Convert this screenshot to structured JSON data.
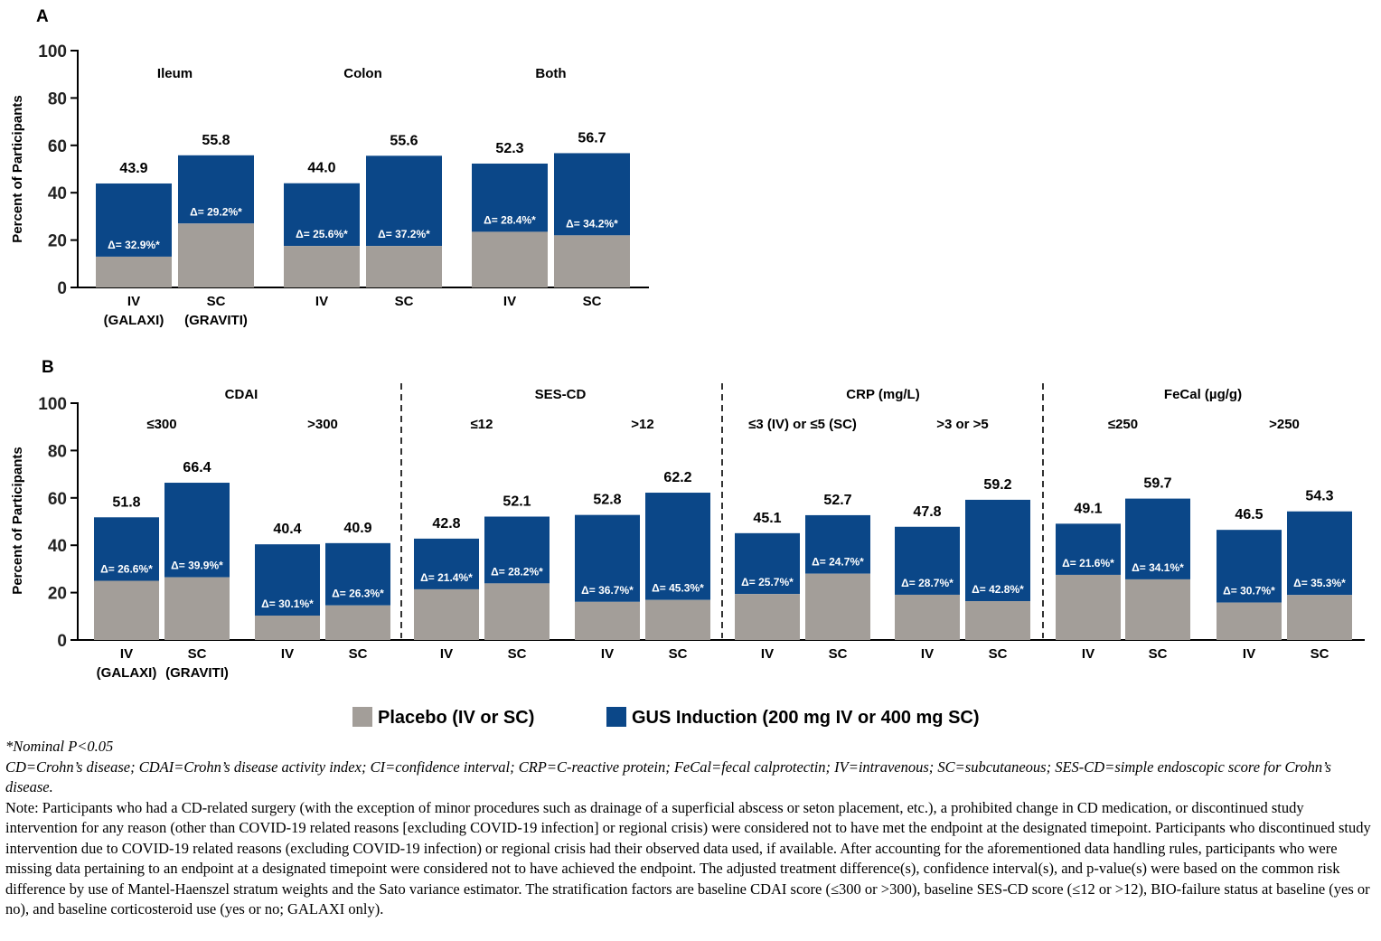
{
  "colors": {
    "placebo": "#a39e99",
    "gus": "#0b4788",
    "axis": "#000000"
  },
  "panels": {
    "a": {
      "label": "A",
      "ylabel": "Percent of Participants",
      "yticks": [
        "0",
        "20",
        "40",
        "60",
        "80",
        "100"
      ]
    },
    "b": {
      "label": "B",
      "ylabel": "Percent of Participants",
      "yticks": [
        "0",
        "20",
        "40",
        "60",
        "80",
        "100"
      ]
    }
  },
  "legend": {
    "placebo": "Placebo (IV or SC)",
    "gus": "GUS Induction (200 mg IV or 400 mg SC)"
  },
  "chart_data": [
    {
      "type": "bar",
      "stacked": true,
      "panel": "A",
      "ylabel": "Percent of Participants",
      "ylim": [
        0,
        100
      ],
      "groups": [
        {
          "label": "Ileum",
          "bars": [
            {
              "x": "IV",
              "sub": "(GALAXI)",
              "placebo": 13.0,
              "total": 43.9,
              "total_label": "43.9",
              "delta_label": "Δ= 32.9%*"
            },
            {
              "x": "SC",
              "sub": "(GRAVITI)",
              "placebo": 27.0,
              "total": 55.8,
              "total_label": "55.8",
              "delta_label": "Δ= 29.2%*"
            }
          ]
        },
        {
          "label": "Colon",
          "bars": [
            {
              "x": "IV",
              "sub": "",
              "placebo": 17.5,
              "total": 44.0,
              "total_label": "44.0",
              "delta_label": "Δ= 25.6%*"
            },
            {
              "x": "SC",
              "sub": "",
              "placebo": 17.5,
              "total": 55.6,
              "total_label": "55.6",
              "delta_label": "Δ= 37.2%*"
            }
          ]
        },
        {
          "label": "Both",
          "bars": [
            {
              "x": "IV",
              "sub": "",
              "placebo": 23.5,
              "total": 52.3,
              "total_label": "52.3",
              "delta_label": "Δ= 28.4%*"
            },
            {
              "x": "SC",
              "sub": "",
              "placebo": 22.0,
              "total": 56.7,
              "total_label": "56.7",
              "delta_label": "Δ= 34.2%*"
            }
          ]
        }
      ]
    },
    {
      "type": "bar",
      "stacked": true,
      "panel": "B",
      "ylabel": "Percent of Participants",
      "ylim": [
        0,
        100
      ],
      "categories": [
        "CDAI",
        "SES-CD",
        "CRP (mg/L)",
        "FeCal (µg/g)"
      ],
      "groups": [
        {
          "category": "CDAI",
          "label": "≤300",
          "bars": [
            {
              "x": "IV",
              "sub": "(GALAXI)",
              "placebo": 25.0,
              "total": 51.8,
              "total_label": "51.8",
              "delta_label": "Δ= 26.6%*"
            },
            {
              "x": "SC",
              "sub": "(GRAVITI)",
              "placebo": 26.5,
              "total": 66.4,
              "total_label": "66.4",
              "delta_label": "Δ= 39.9%*"
            }
          ]
        },
        {
          "category": "CDAI",
          "label": ">300",
          "bars": [
            {
              "x": "IV",
              "sub": "",
              "placebo": 10.3,
              "total": 40.4,
              "total_label": "40.4",
              "delta_label": "Δ= 30.1%*"
            },
            {
              "x": "SC",
              "sub": "",
              "placebo": 14.6,
              "total": 40.9,
              "total_label": "40.9",
              "delta_label": "Δ= 26.3%*"
            }
          ]
        },
        {
          "category": "SES-CD",
          "label": "≤12",
          "bars": [
            {
              "x": "IV",
              "sub": "",
              "placebo": 21.4,
              "total": 42.8,
              "total_label": "42.8",
              "delta_label": "Δ= 21.4%*"
            },
            {
              "x": "SC",
              "sub": "",
              "placebo": 23.9,
              "total": 52.1,
              "total_label": "52.1",
              "delta_label": "Δ= 28.2%*"
            }
          ]
        },
        {
          "category": "SES-CD",
          "label": ">12",
          "bars": [
            {
              "x": "IV",
              "sub": "",
              "placebo": 16.1,
              "total": 52.8,
              "total_label": "52.8",
              "delta_label": "Δ= 36.7%*"
            },
            {
              "x": "SC",
              "sub": "",
              "placebo": 16.9,
              "total": 62.2,
              "total_label": "62.2",
              "delta_label": "Δ= 45.3%*"
            }
          ]
        },
        {
          "category": "CRP (mg/L)",
          "label": "≤3 (IV) or ≤5 (SC)",
          "bars": [
            {
              "x": "IV",
              "sub": "",
              "placebo": 19.4,
              "total": 45.1,
              "total_label": "45.1",
              "delta_label": "Δ= 25.7%*"
            },
            {
              "x": "SC",
              "sub": "",
              "placebo": 28.0,
              "total": 52.7,
              "total_label": "52.7",
              "delta_label": "Δ= 24.7%*"
            }
          ]
        },
        {
          "category": "CRP (mg/L)",
          "label": ">3 or >5",
          "bars": [
            {
              "x": "IV",
              "sub": "",
              "placebo": 19.1,
              "total": 47.8,
              "total_label": "47.8",
              "delta_label": "Δ= 28.7%*"
            },
            {
              "x": "SC",
              "sub": "",
              "placebo": 16.4,
              "total": 59.2,
              "total_label": "59.2",
              "delta_label": "Δ= 42.8%*"
            }
          ]
        },
        {
          "category": "FeCal (µg/g)",
          "label": "≤250",
          "bars": [
            {
              "x": "IV",
              "sub": "",
              "placebo": 27.5,
              "total": 49.1,
              "total_label": "49.1",
              "delta_label": "Δ= 21.6%*"
            },
            {
              "x": "SC",
              "sub": "",
              "placebo": 25.6,
              "total": 59.7,
              "total_label": "59.7",
              "delta_label": "Δ= 34.1%*"
            }
          ]
        },
        {
          "category": "FeCal (µg/g)",
          "label": ">250",
          "bars": [
            {
              "x": "IV",
              "sub": "",
              "placebo": 15.8,
              "total": 46.5,
              "total_label": "46.5",
              "delta_label": "Δ= 30.7%*"
            },
            {
              "x": "SC",
              "sub": "",
              "placebo": 19.0,
              "total": 54.3,
              "total_label": "54.3",
              "delta_label": "Δ= 35.3%*"
            }
          ]
        }
      ]
    }
  ],
  "footnotes": {
    "nominal": "*Nominal P<0.05",
    "abbreviations": "CD=Crohn’s disease; CDAI=Crohn’s disease activity index; CI=confidence interval; CRP=C-reactive protein; FeCal=fecal calprotectin; IV=intravenous; SC=subcutaneous; SES-CD=simple endoscopic score for Crohn’s disease.",
    "note": "Note: Participants who had a CD-related surgery (with the exception of minor procedures such as drainage of a superficial abscess or seton placement, etc.), a prohibited change in CD medication, or discontinued study intervention for any reason (other than COVID-19 related reasons [excluding COVID-19 infection] or regional crisis) were considered not to have met the endpoint at the designated timepoint. Participants who discontinued study intervention due to COVID-19 related reasons (excluding COVID-19 infection) or regional crisis had their observed data used, if available. After accounting for the aforementioned data handling rules, participants who were missing data pertaining to an endpoint at a designated timepoint were considered not to have achieved the endpoint. The adjusted treatment difference(s), confidence interval(s), and p-value(s) were based on the common risk difference by use of Mantel-Haenszel stratum weights and the Sato variance estimator. The stratification factors are baseline CDAI score (≤300 or >300), baseline SES-CD score (≤12 or >12), BIO-failure status at baseline (yes or no), and baseline corticosteroid use (yes or no; GALAXI only)."
  }
}
